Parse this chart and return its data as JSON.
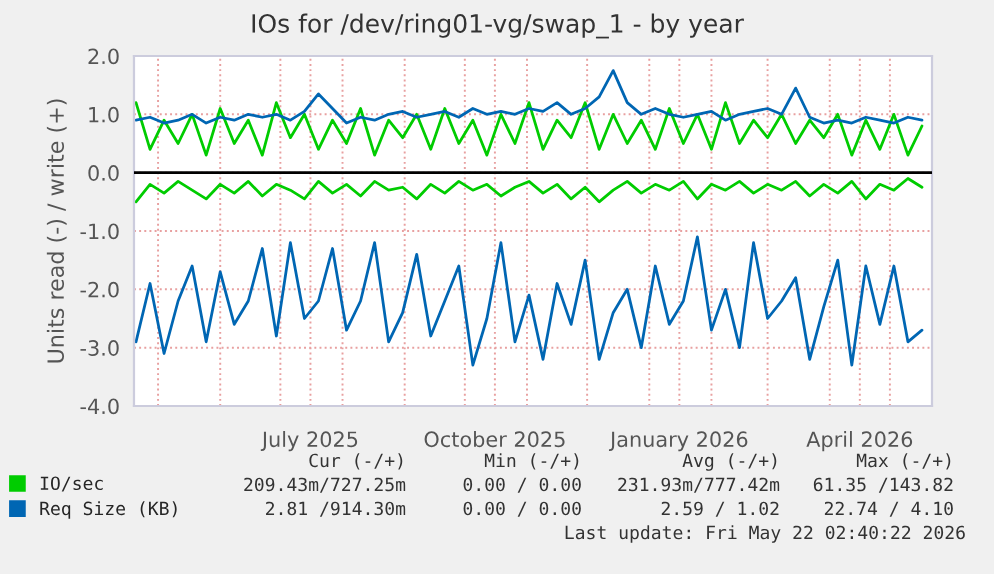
{
  "chart_data": {
    "type": "line",
    "title": "IOs for /dev/ring01-vg/swap_1 - by year",
    "ylabel": "Units read (-) / write (+)",
    "x": [
      "2025-04-20",
      "2025-04-27",
      "2025-05-04",
      "2025-05-11",
      "2025-05-18",
      "2025-05-25",
      "2025-06-01",
      "2025-06-08",
      "2025-06-15",
      "2025-06-22",
      "2025-06-29",
      "2025-07-06",
      "2025-07-13",
      "2025-07-20",
      "2025-07-27",
      "2025-08-03",
      "2025-08-10",
      "2025-08-17",
      "2025-08-24",
      "2025-08-31",
      "2025-09-07",
      "2025-09-14",
      "2025-09-21",
      "2025-09-28",
      "2025-10-05",
      "2025-10-12",
      "2025-10-19",
      "2025-10-26",
      "2025-11-02",
      "2025-11-09",
      "2025-11-16",
      "2025-11-23",
      "2025-11-30",
      "2025-12-07",
      "2025-12-14",
      "2025-12-21",
      "2025-12-28",
      "2026-01-04",
      "2026-01-11",
      "2026-01-18",
      "2026-01-25",
      "2026-02-01",
      "2026-02-08",
      "2026-02-15",
      "2026-02-22",
      "2026-03-01",
      "2026-03-08",
      "2026-03-15",
      "2026-03-22",
      "2026-03-29",
      "2026-04-05",
      "2026-04-12",
      "2026-04-19",
      "2026-04-26",
      "2026-05-03",
      "2026-05-10",
      "2026-05-17"
    ],
    "series": [
      {
        "color": "#00cc00",
        "values": [
          -0.5,
          -0.2,
          -0.35,
          -0.15,
          -0.3,
          -0.45,
          -0.2,
          -0.35,
          -0.15,
          -0.4,
          -0.2,
          -0.3,
          -0.45,
          -0.15,
          -0.35,
          -0.2,
          -0.4,
          -0.15,
          -0.3,
          -0.25,
          -0.45,
          -0.2,
          -0.35,
          -0.15,
          -0.3,
          -0.2,
          -0.4,
          -0.25,
          -0.15,
          -0.35,
          -0.2,
          -0.45,
          -0.25,
          -0.5,
          -0.3,
          -0.15,
          -0.35,
          -0.2,
          -0.3,
          -0.15,
          -0.45,
          -0.2,
          -0.3,
          -0.15,
          -0.35,
          -0.2,
          -0.3,
          -0.15,
          -0.4,
          -0.2,
          -0.35,
          -0.15,
          -0.45,
          -0.2,
          -0.3,
          -0.1,
          -0.25
        ]
      },
      {
        "name": "IO/sec",
        "color": "#00cc00",
        "values": [
          1.2,
          0.4,
          0.9,
          0.5,
          1.0,
          0.3,
          1.1,
          0.5,
          0.9,
          0.3,
          1.2,
          0.6,
          1.0,
          0.4,
          0.9,
          0.5,
          1.1,
          0.3,
          0.9,
          0.6,
          1.0,
          0.4,
          1.1,
          0.5,
          0.9,
          0.3,
          1.0,
          0.5,
          1.2,
          0.4,
          0.9,
          0.6,
          1.2,
          0.4,
          1.0,
          0.5,
          0.9,
          0.4,
          1.1,
          0.5,
          1.0,
          0.4,
          1.2,
          0.5,
          0.9,
          0.6,
          1.0,
          0.5,
          0.9,
          0.6,
          1.0,
          0.3,
          0.9,
          0.4,
          1.0,
          0.3,
          0.8
        ]
      },
      {
        "color": "#0066b3",
        "values": [
          -2.9,
          -1.9,
          -3.1,
          -2.2,
          -1.6,
          -2.9,
          -1.7,
          -2.6,
          -2.2,
          -1.3,
          -2.8,
          -1.2,
          -2.5,
          -2.2,
          -1.3,
          -2.7,
          -2.2,
          -1.2,
          -2.9,
          -2.4,
          -1.4,
          -2.8,
          -2.2,
          -1.6,
          -3.3,
          -2.5,
          -1.2,
          -2.9,
          -2.1,
          -3.2,
          -1.9,
          -2.6,
          -1.5,
          -3.2,
          -2.4,
          -2.0,
          -3.0,
          -1.6,
          -2.6,
          -2.2,
          -1.1,
          -2.7,
          -2.0,
          -3.0,
          -1.2,
          -2.5,
          -2.2,
          -1.8,
          -3.2,
          -2.3,
          -1.5,
          -3.3,
          -1.6,
          -2.6,
          -1.6,
          -2.9,
          -2.7
        ]
      },
      {
        "name": "Req Size (KB)",
        "color": "#0066b3",
        "values": [
          0.9,
          0.95,
          0.85,
          0.9,
          1.0,
          0.85,
          0.95,
          0.9,
          1.0,
          0.95,
          1.0,
          0.9,
          1.05,
          1.35,
          1.1,
          0.85,
          0.95,
          0.9,
          1.0,
          1.05,
          0.95,
          1.0,
          1.05,
          0.95,
          1.1,
          1.0,
          1.05,
          1.0,
          1.1,
          1.05,
          1.2,
          1.0,
          1.1,
          1.3,
          1.75,
          1.2,
          1.0,
          1.1,
          1.0,
          0.95,
          1.0,
          1.05,
          0.9,
          1.0,
          1.05,
          1.1,
          1.0,
          1.45,
          0.95,
          0.85,
          0.9,
          0.85,
          0.95,
          0.9,
          0.85,
          0.95,
          0.9
        ]
      }
    ],
    "xlim": [
      "2025-04-19",
      "2026-05-22"
    ],
    "xticks": [
      {
        "value": "2025-05-01",
        "label": null
      },
      {
        "value": "2025-06-01",
        "label": null
      },
      {
        "value": "2025-07-01",
        "label": null
      },
      {
        "value": "2025-07-16",
        "label": "July 2025"
      },
      {
        "value": "2025-08-01",
        "label": null
      },
      {
        "value": "2025-09-01",
        "label": null
      },
      {
        "value": "2025-10-01",
        "label": null
      },
      {
        "value": "2025-10-16",
        "label": "October 2025"
      },
      {
        "value": "2025-11-01",
        "label": null
      },
      {
        "value": "2025-12-01",
        "label": null
      },
      {
        "value": "2026-01-01",
        "label": null
      },
      {
        "value": "2026-01-16",
        "label": "January 2026"
      },
      {
        "value": "2026-02-01",
        "label": null
      },
      {
        "value": "2026-03-01",
        "label": null
      },
      {
        "value": "2026-04-01",
        "label": null
      },
      {
        "value": "2026-04-16",
        "label": "April 2026"
      },
      {
        "value": "2026-05-01",
        "label": null
      }
    ],
    "ylim": [
      -4.0,
      2.0
    ],
    "yticks": [
      {
        "value": -4.0,
        "label": "-4.0"
      },
      {
        "value": -3.0,
        "label": "-3.0"
      },
      {
        "value": -2.0,
        "label": "-2.0"
      },
      {
        "value": -1.0,
        "label": "-1.0"
      },
      {
        "value": 0.0,
        "label": "0.0"
      },
      {
        "value": 1.0,
        "label": "1.0"
      },
      {
        "value": 2.0,
        "label": "2.0"
      }
    ],
    "ref_lines": [
      {
        "axis": "y",
        "value": 0.0,
        "color": "#000000"
      }
    ],
    "grid": true,
    "legend": "bottom left",
    "marker": "none",
    "line_style": "solid",
    "annotations": [
      "Cur (-/+)",
      "Min (-/+)",
      "Avg (-/+)",
      "Max (-/+)",
      "209.43m/727.25m",
      "0.00 / 0.00",
      "231.93m/777.42m",
      "61.35 /143.82",
      "2.81 /914.30m",
      "0.00 / 0.00",
      "2.59 / 1.02",
      "22.74 / 4.10",
      "Last update: Fri May 22 02:40:22 2026"
    ]
  }
}
